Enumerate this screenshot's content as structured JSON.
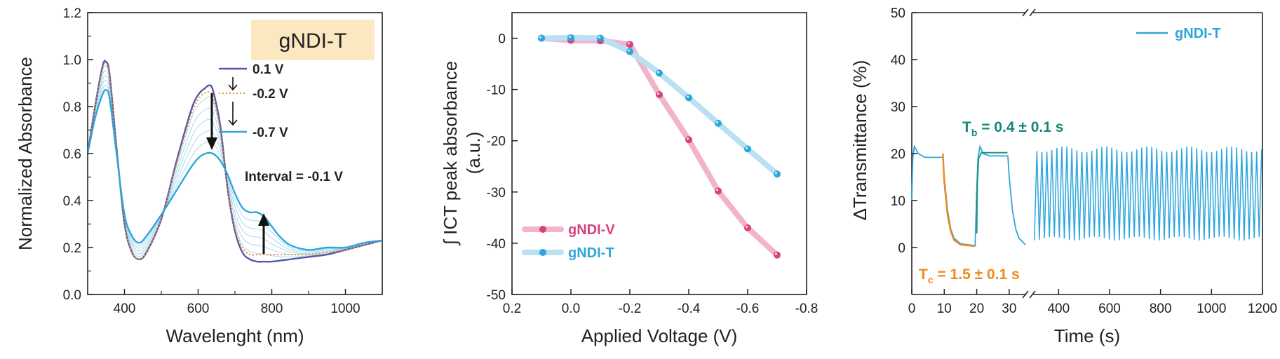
{
  "chart_data": [
    {
      "type": "line",
      "xlabel": "Wavelenght (nm)",
      "ylabel": "Normalized Absorbance",
      "xlim": [
        300,
        1100
      ],
      "ylim": [
        0.0,
        1.2
      ],
      "xticks": [
        "400",
        "600",
        "800",
        "1000"
      ],
      "yticks": [
        "0.0",
        "0.2",
        "0.4",
        "0.6",
        "0.8",
        "1.0",
        "1.2"
      ],
      "legend_title": "gNDI-T",
      "series": [
        {
          "name": "0.1 V",
          "color": "#5a55a8",
          "style": "solid",
          "x": [
            300,
            320,
            340,
            350,
            360,
            380,
            400,
            420,
            440,
            460,
            500,
            540,
            580,
            600,
            620,
            630,
            640,
            660,
            680,
            700,
            720,
            740,
            760,
            780,
            800,
            850,
            900,
            950,
            1000,
            1050,
            1100
          ],
          "y": [
            0.6,
            0.8,
            0.97,
            0.99,
            0.93,
            0.6,
            0.3,
            0.18,
            0.15,
            0.18,
            0.32,
            0.56,
            0.78,
            0.85,
            0.88,
            0.89,
            0.87,
            0.72,
            0.45,
            0.27,
            0.18,
            0.15,
            0.14,
            0.14,
            0.14,
            0.15,
            0.16,
            0.17,
            0.19,
            0.21,
            0.23
          ]
        },
        {
          "name": "-0.2 V",
          "color": "#e8902c",
          "style": "dotted",
          "x": [
            300,
            320,
            340,
            350,
            360,
            380,
            400,
            420,
            440,
            460,
            500,
            540,
            580,
            600,
            620,
            630,
            640,
            660,
            680,
            700,
            720,
            740,
            760,
            780,
            800,
            850,
            900,
            950,
            1000,
            1050,
            1100
          ],
          "y": [
            0.6,
            0.8,
            0.96,
            0.98,
            0.92,
            0.6,
            0.3,
            0.18,
            0.15,
            0.18,
            0.32,
            0.55,
            0.76,
            0.83,
            0.86,
            0.86,
            0.84,
            0.7,
            0.45,
            0.28,
            0.2,
            0.17,
            0.17,
            0.17,
            0.17,
            0.17,
            0.17,
            0.18,
            0.19,
            0.21,
            0.23
          ]
        },
        {
          "name": "-0.7 V",
          "color": "#2ea6dc",
          "style": "solid",
          "x": [
            300,
            320,
            340,
            350,
            360,
            380,
            400,
            420,
            440,
            460,
            500,
            540,
            580,
            600,
            620,
            640,
            660,
            680,
            700,
            720,
            740,
            760,
            780,
            800,
            820,
            850,
            900,
            950,
            1000,
            1050,
            1100
          ],
          "y": [
            0.6,
            0.75,
            0.85,
            0.87,
            0.83,
            0.58,
            0.34,
            0.25,
            0.22,
            0.25,
            0.34,
            0.44,
            0.54,
            0.58,
            0.6,
            0.6,
            0.57,
            0.51,
            0.43,
            0.37,
            0.35,
            0.35,
            0.33,
            0.29,
            0.25,
            0.21,
            0.19,
            0.2,
            0.2,
            0.22,
            0.23
          ]
        }
      ],
      "annotation": "Interval = -0.1 V"
    },
    {
      "type": "line",
      "xlabel": "Applied Voltage (V)",
      "ylabel": "∫ ICT peak absorbance\n(a.u.)",
      "xlim": [
        0.2,
        -0.8
      ],
      "ylim": [
        -50,
        5
      ],
      "xticks": [
        "0.2",
        "0.0",
        "-0.2",
        "-0.4",
        "-0.6",
        "-0.8"
      ],
      "yticks": [
        "0",
        "-10",
        "-20",
        "-30",
        "-40",
        "-50"
      ],
      "legend_position": "bottom-left",
      "series": [
        {
          "name": "gNDI-V",
          "color": "#d6417e",
          "x": [
            0.1,
            0.0,
            -0.1,
            -0.2,
            -0.3,
            -0.4,
            -0.5,
            -0.6,
            -0.7
          ],
          "y": [
            0.0,
            -0.4,
            -0.5,
            -1.2,
            -11.0,
            -19.8,
            -29.8,
            -37.0,
            -42.3
          ]
        },
        {
          "name": "gNDI-T",
          "color": "#2ea6dc",
          "x": [
            0.1,
            0.0,
            -0.1,
            -0.2,
            -0.3,
            -0.4,
            -0.5,
            -0.6,
            -0.7
          ],
          "y": [
            0.0,
            0.1,
            0.0,
            -2.6,
            -6.8,
            -11.6,
            -16.6,
            -21.6,
            -26.5
          ]
        }
      ]
    },
    {
      "type": "line",
      "xlabel": "Time (s)",
      "ylabel": "ΔTransmittance  (%)",
      "xlim_left": [
        0,
        35
      ],
      "xlim_right": [
        300,
        1200
      ],
      "ylim": [
        -10,
        50
      ],
      "xticks_left": [
        "0",
        "10",
        "20",
        "30"
      ],
      "xticks_right": [
        "400",
        "600",
        "800",
        "1000",
        "1200"
      ],
      "yticks": [
        "0",
        "10",
        "20",
        "30",
        "40",
        "50"
      ],
      "legend_position": "top-right",
      "series": [
        {
          "name": "gNDI-T",
          "color": "#2ea6dc"
        }
      ],
      "cycling_range_percent": [
        1.5,
        21.5
      ],
      "annotations": {
        "tb_text": "T",
        "tb_sub": "b",
        "tb_value": " = 0.4 ± 0.1 s",
        "tb_color": "#17877a",
        "tc_text": "T",
        "tc_sub": "c",
        "tc_value": " = 1.5 ± 0.1 s",
        "tc_color": "#ef8a1c"
      }
    }
  ]
}
